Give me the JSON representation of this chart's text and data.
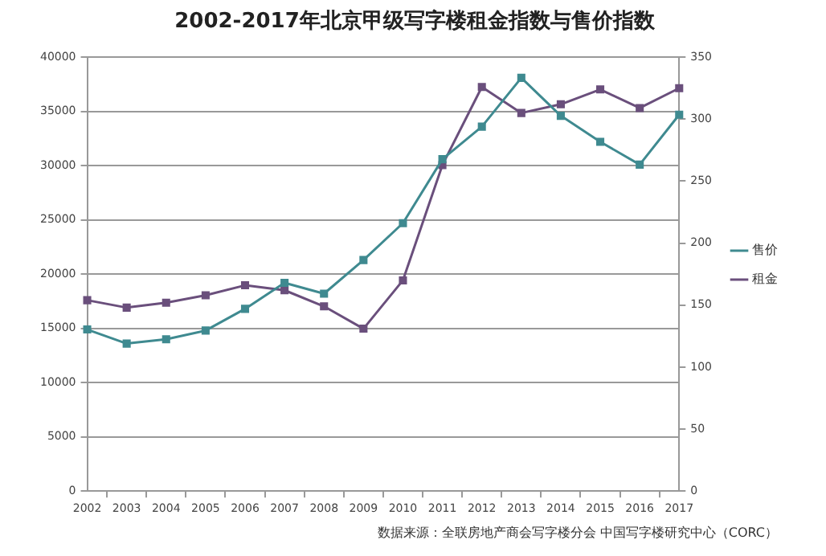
{
  "chart_data": {
    "type": "line",
    "title": "2002-2017年北京甲级写字楼租金指数与售价指数",
    "categories": [
      "2002",
      "2003",
      "2004",
      "2005",
      "2006",
      "2007",
      "2008",
      "2009",
      "2010",
      "2011",
      "2012",
      "2013",
      "2014",
      "2015",
      "2016",
      "2017"
    ],
    "series": [
      {
        "name": "售价",
        "color": "#3f8a90",
        "values": [
          14900,
          13600,
          14000,
          14800,
          16800,
          19200,
          18200,
          21300,
          24700,
          30600,
          33600,
          38100,
          34600,
          32200,
          30100,
          34700
        ]
      },
      {
        "name": "租金",
        "color": "#6a4f7c",
        "axis": "y2",
        "values": [
          154,
          148,
          152,
          158,
          166,
          162,
          149,
          131,
          170,
          263,
          326,
          305,
          312,
          324,
          309,
          325
        ]
      }
    ],
    "ylim": [
      0,
      40000
    ],
    "yticks": [
      0,
      5000,
      10000,
      15000,
      20000,
      25000,
      30000,
      35000,
      40000
    ],
    "y2lim": [
      0,
      350
    ],
    "y2ticks": [
      0,
      50,
      100,
      150,
      200,
      250,
      300,
      350
    ],
    "grid": "y",
    "legend": "right",
    "marker": "square",
    "line_style": "solid",
    "annotations": [
      "数据来源：全联房地产商会写字楼分会 中国写字楼研究中心（CORC）"
    ]
  }
}
